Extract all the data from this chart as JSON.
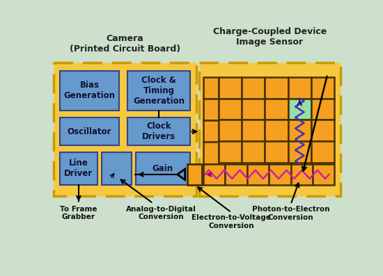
{
  "bg_color": "#cce0cc",
  "cam_fill": "#f5c840",
  "cam_dash_color": "#cc9900",
  "ccd_fill": "#f5c840",
  "ccd_dash_color": "#cc9900",
  "blue_fill": "#6699cc",
  "blue_edge": "#334488",
  "orange_fill": "#f5a020",
  "orange_edge": "#443300",
  "green_fill": "#99ddaa",
  "camera_title": "Camera\n(Printed Circuit Board)",
  "ccd_title": "Charge-Coupled Device\nImage Sensor",
  "label_framegrab": "To Frame\nGrabber",
  "label_adc": "Analog-to-Digital\nConversion",
  "label_etv": "Electron-to-Voltage\nConversion",
  "label_pte": "Photon-to-Electron\nConversion"
}
